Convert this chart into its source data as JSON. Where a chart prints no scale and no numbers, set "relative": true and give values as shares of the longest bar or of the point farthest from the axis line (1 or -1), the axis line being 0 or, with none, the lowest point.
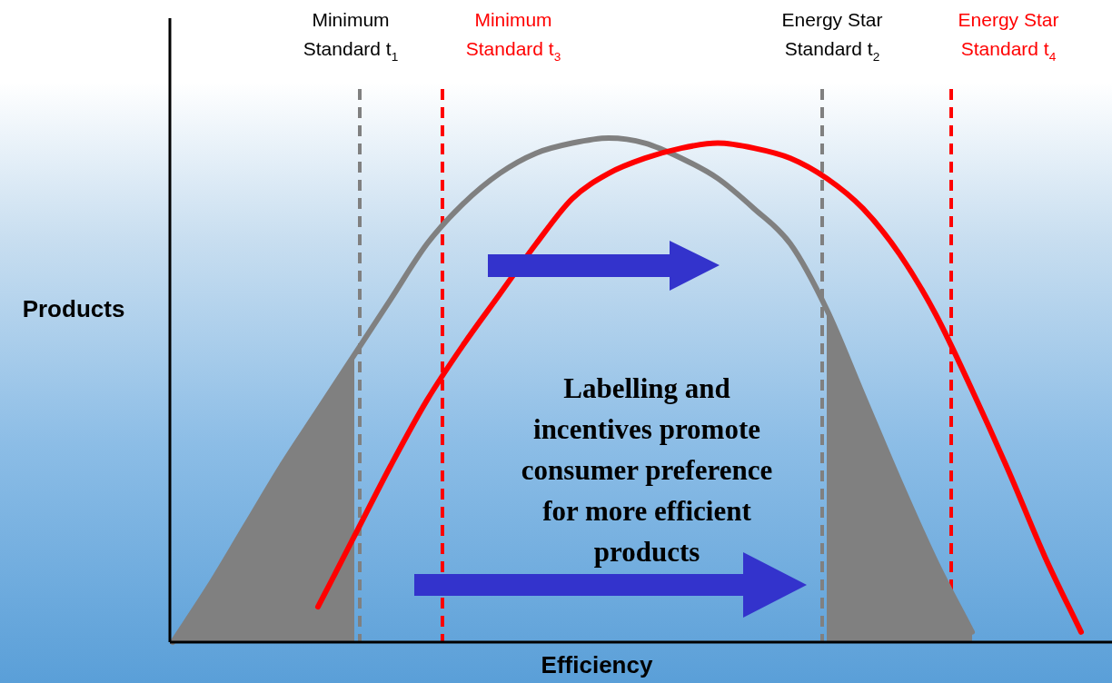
{
  "chart_data": {
    "type": "line",
    "relative": true,
    "xlabel": "Efficiency",
    "ylabel": "Products",
    "legend": false,
    "marker": "none",
    "categories": [
      null,
      null,
      null,
      null,
      null,
      null,
      null,
      null,
      null,
      null,
      null,
      null,
      null,
      null,
      null,
      null,
      null,
      null,
      null,
      null,
      null,
      null,
      null,
      null,
      null,
      null
    ],
    "series": [
      {
        "type": "area",
        "color": "#808080",
        "values": [
          0,
          0.11,
          0.23,
          0.35,
          0.46,
          0.57,
          null,
          null,
          null,
          null,
          null,
          null,
          null,
          null,
          null,
          null,
          null,
          null,
          0.66,
          0.49,
          0.32,
          0.16,
          0.02,
          null,
          null,
          null
        ]
      },
      {
        "color": "#808080",
        "values": [
          0,
          0.11,
          0.23,
          0.35,
          0.46,
          0.57,
          0.68,
          0.79,
          0.87,
          0.93,
          0.97,
          0.99,
          1,
          0.99,
          0.96,
          0.92,
          0.86,
          0.79,
          0.66,
          0.49,
          0.32,
          0.16,
          0.02,
          null,
          null,
          null
        ]
      },
      {
        "color": "#ff0000",
        "values": [
          null,
          null,
          null,
          null,
          0.07,
          0.21,
          0.35,
          0.48,
          0.59,
          0.69,
          0.79,
          0.88,
          0.93,
          0.96,
          0.98,
          0.99,
          0.98,
          0.96,
          0.92,
          0.86,
          0.77,
          0.65,
          0.5,
          0.34,
          0.17,
          0.02
        ]
      }
    ],
    "annotations": [
      "Minimum\nStandard t$_{1}$",
      "Minimum\nStandard t$_{3}$",
      "Energy Star\nStandard t$_{2}$",
      "Energy Star\nStandard t$_{4}$",
      "Labelling and\nincentives promote\nconsumer preference\nfor more efficient\nproducts"
    ]
  }
}
